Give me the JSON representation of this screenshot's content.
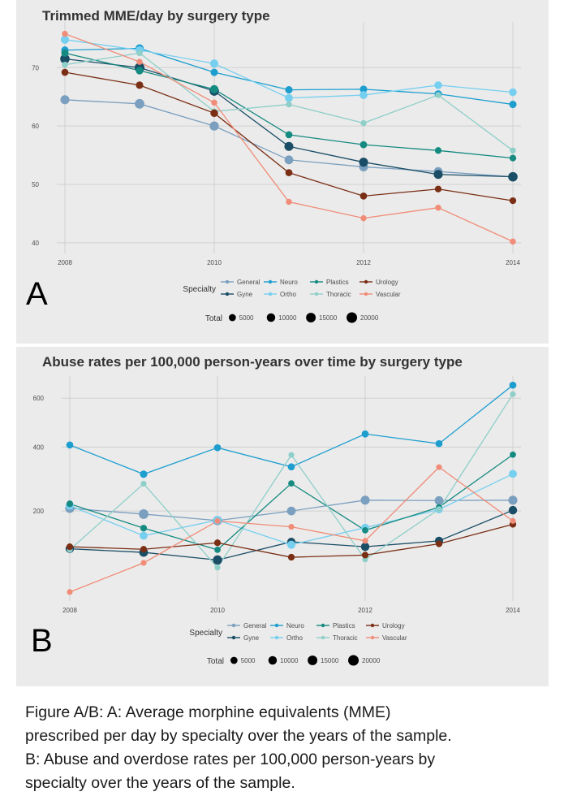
{
  "chart_data": [
    {
      "type": "line",
      "panel_label": "A",
      "title": "Trimmed MME/day by surgery type",
      "xlabel": "",
      "ylabel": "",
      "x": [
        2008,
        2009,
        2010,
        2011,
        2012,
        2013,
        2014
      ],
      "x_ticks": [
        2008,
        2010,
        2012,
        2014
      ],
      "y_ticks": [
        40,
        50,
        60,
        70
      ],
      "ylim": [
        39,
        77
      ],
      "grid": true,
      "legend_position": "bottom",
      "legend_title": "Specialty",
      "size_legend_title": "Total",
      "size_legend_values": [
        5000,
        10000,
        15000,
        20000
      ],
      "series": [
        {
          "name": "General",
          "color": "#7b9fbf",
          "values": [
            64.5,
            63.8,
            60.0,
            54.2,
            53.0,
            52.2,
            51.3
          ],
          "sizes": [
            12000,
            15000,
            13000,
            11000,
            12000,
            11000,
            10000
          ]
        },
        {
          "name": "Gyne",
          "color": "#1a4d66",
          "values": [
            71.5,
            70.0,
            66.0,
            56.5,
            53.8,
            51.7,
            51.3
          ],
          "sizes": [
            14000,
            16000,
            14000,
            12000,
            12000,
            12000,
            14000
          ]
        },
        {
          "name": "Neuro",
          "color": "#1d9ecf",
          "values": [
            73.0,
            73.3,
            69.2,
            66.2,
            66.3,
            65.5,
            63.7
          ],
          "sizes": [
            6000,
            9000,
            6000,
            6000,
            6000,
            6000,
            6000
          ]
        },
        {
          "name": "Ortho",
          "color": "#77cff0",
          "values": [
            74.8,
            73.0,
            70.7,
            64.8,
            65.3,
            67.0,
            65.8
          ],
          "sizes": [
            9000,
            8000,
            9000,
            8000,
            8000,
            7000,
            7000
          ]
        },
        {
          "name": "Plastics",
          "color": "#148a80",
          "values": [
            72.5,
            69.5,
            66.3,
            58.5,
            56.8,
            55.8,
            54.5
          ],
          "sizes": [
            6000,
            7000,
            9000,
            5000,
            5000,
            4000,
            4000
          ]
        },
        {
          "name": "Thoracic",
          "color": "#8fcfc9",
          "values": [
            70.5,
            72.5,
            62.5,
            63.7,
            60.5,
            65.3,
            55.8
          ],
          "sizes": [
            2500,
            2500,
            2500,
            2500,
            2500,
            2500,
            2500
          ]
        },
        {
          "name": "Urology",
          "color": "#7a2e14",
          "values": [
            69.2,
            67.0,
            62.2,
            52.0,
            48.0,
            49.2,
            47.2
          ],
          "sizes": [
            5000,
            6000,
            7000,
            5000,
            5000,
            4000,
            4000
          ]
        },
        {
          "name": "Vascular",
          "color": "#f08c77",
          "values": [
            75.8,
            71.0,
            64.0,
            47.0,
            44.2,
            46.0,
            40.2
          ],
          "sizes": [
            2500,
            2500,
            2500,
            2500,
            2500,
            2500,
            2500
          ]
        }
      ]
    },
    {
      "type": "line",
      "panel_label": "B",
      "title": "Abuse rates per 100,000 person-years over time by surgery type",
      "xlabel": "",
      "ylabel": "",
      "x": [
        2008,
        2009,
        2010,
        2011,
        2012,
        2013,
        2014
      ],
      "x_ticks": [
        2008,
        2010,
        2012,
        2014
      ],
      "y_ticks": [
        200,
        400,
        600
      ],
      "ylim": [
        40,
        680
      ],
      "y_scale": "sqrt",
      "grid": true,
      "legend_position": "bottom",
      "legend_title": "Specialty",
      "size_legend_title": "Total",
      "size_legend_values": [
        5000,
        10000,
        15000,
        20000
      ],
      "series": [
        {
          "name": "General",
          "color": "#7b9fbf",
          "values": [
            207,
            192,
            176,
            200,
            229,
            228,
            229
          ],
          "sizes": [
            13000,
            15000,
            13000,
            11000,
            12000,
            11000,
            12000
          ]
        },
        {
          "name": "Gyne",
          "color": "#1a4d66",
          "values": [
            114,
            107,
            93,
            128,
            118,
            130,
            202
          ],
          "sizes": [
            10000,
            11000,
            13000,
            9000,
            10000,
            9000,
            10000
          ]
        },
        {
          "name": "Neuro",
          "color": "#1d9ecf",
          "values": [
            408,
            307,
            398,
            331,
            450,
            413,
            660
          ],
          "sizes": [
            5000,
            6000,
            5000,
            5000,
            5000,
            5000,
            5000
          ]
        },
        {
          "name": "Ortho",
          "color": "#77cff0",
          "values": [
            214,
            141,
            177,
            122,
            159,
            204,
            308
          ],
          "sizes": [
            9000,
            8000,
            9000,
            9000,
            8000,
            7000,
            8000
          ]
        },
        {
          "name": "Plastics",
          "color": "#148a80",
          "values": [
            219,
            158,
            112,
            278,
            153,
            210,
            373
          ],
          "sizes": [
            4000,
            4000,
            3000,
            3000,
            3000,
            3000,
            3000
          ]
        },
        {
          "name": "Thoracic",
          "color": "#8fcfc9",
          "values": [
            112,
            277,
            80,
            372,
            94,
            205,
            618
          ],
          "sizes": [
            2000,
            2000,
            2000,
            2000,
            2000,
            2000,
            2000
          ]
        },
        {
          "name": "Urology",
          "color": "#7a2e14",
          "values": [
            118,
            113,
            126,
            98,
            102,
            124,
            167
          ],
          "sizes": [
            4000,
            4000,
            4000,
            4000,
            4000,
            4000,
            4000
          ]
        },
        {
          "name": "Vascular",
          "color": "#f08c77",
          "values": [
            45,
            88,
            175,
            161,
            130,
            330,
            175
          ],
          "sizes": [
            2000,
            2000,
            2000,
            2000,
            2000,
            2000,
            2000
          ]
        }
      ]
    }
  ],
  "caption": {
    "line1": "Figure A/B:  A:  Average morphine equivalents (MME)",
    "line2": "prescribed per day by specialty over the years of the sample.",
    "line3": "B:  Abuse and overdose rates per 100,000 person-years by",
    "line4": "specialty over the years of the sample."
  }
}
